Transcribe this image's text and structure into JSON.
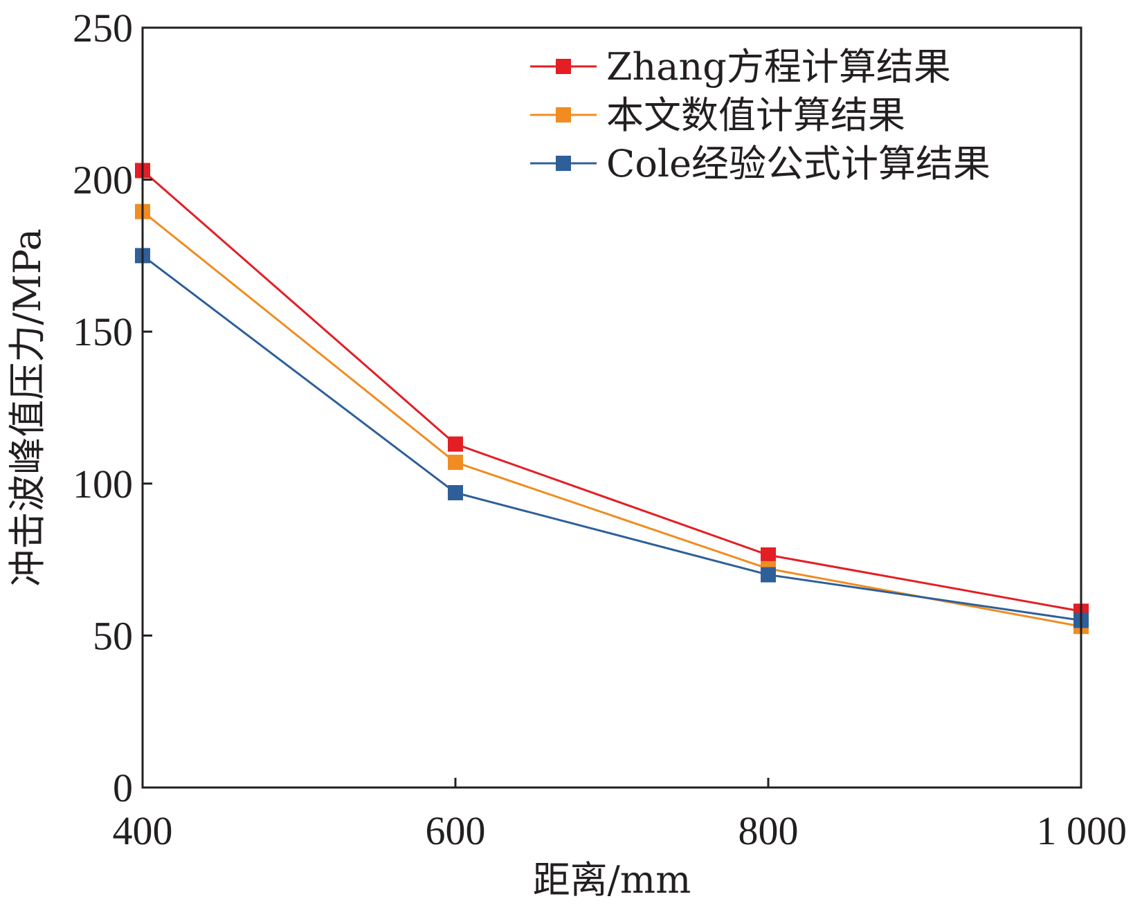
{
  "chart_data": {
    "type": "line",
    "xlabel": "距离/mm",
    "ylabel": "冲击波峰值压力/MPa",
    "xlim": [
      400,
      1000
    ],
    "ylim": [
      0,
      250
    ],
    "x_ticks": [
      400,
      600,
      800,
      1000
    ],
    "x_tick_labels": [
      "400",
      "600",
      "800",
      "1 000"
    ],
    "y_ticks": [
      0,
      50,
      100,
      150,
      200,
      250
    ],
    "y_tick_labels": [
      "0",
      "50",
      "100",
      "150",
      "200",
      "250"
    ],
    "grid": false,
    "legend_position": "top-right",
    "x": [
      400,
      600,
      800,
      1000
    ],
    "series": [
      {
        "name": "Zhang方程计算结果",
        "color": "#e31e24",
        "marker": "square",
        "values": [
          203,
          113,
          76.5,
          58
        ]
      },
      {
        "name": "本文数值计算结果",
        "color": "#f08c21",
        "marker": "square",
        "values": [
          189.5,
          107,
          72,
          53
        ]
      },
      {
        "name": "Cole经验公式计算结果",
        "color": "#2e5f99",
        "marker": "square",
        "values": [
          175,
          97,
          70,
          55
        ]
      }
    ]
  }
}
